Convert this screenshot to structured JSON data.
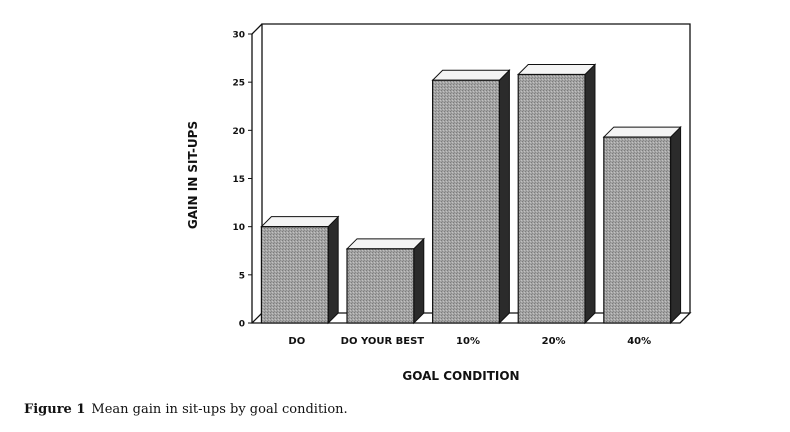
{
  "chart_data": {
    "type": "bar",
    "style": "3d",
    "categories": [
      "DO",
      "DO YOUR BEST",
      "10%",
      "20%",
      "40%"
    ],
    "values": [
      10,
      7.7,
      25.2,
      25.8,
      19.3
    ],
    "xlabel": "GOAL CONDITION",
    "ylabel": "GAIN IN SIT-UPS",
    "ylim": [
      0,
      30
    ],
    "yticks": [
      0,
      5,
      10,
      15,
      20,
      25,
      30
    ],
    "grid": false,
    "bar_color": "#9a9a9a"
  },
  "caption": {
    "label": "Figure 1",
    "text": "Mean gain in sit-ups by goal condition."
  }
}
